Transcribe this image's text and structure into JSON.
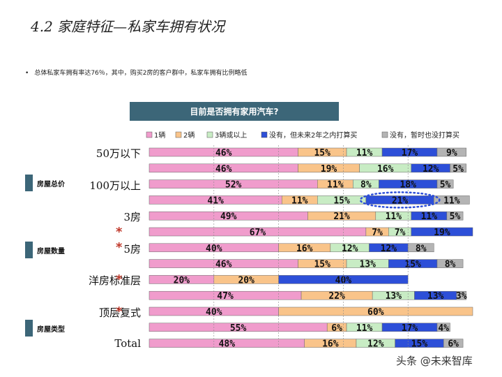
{
  "page": {
    "title": "4.2 家庭特征—私家车拥有状况",
    "bullet": "总体私家车拥有率达76％，其中，购买2房的客户群中，私家车拥有比例略低",
    "watermark": "头条 @未来智库"
  },
  "groups": [
    "房屋总价",
    "房屋数量",
    "房屋类型"
  ],
  "chart_data": {
    "type": "bar",
    "orientation": "horizontal-stacked-100",
    "title": "目前是否拥有家用汽车?",
    "legend": [
      "1辆",
      "2辆",
      "3辆或以上",
      "没有，但未来2年之内打算买",
      "没有，暂时也没打算买"
    ],
    "colors": [
      "#f09ccc",
      "#f9c48a",
      "#c8ecc4",
      "#2d4fd8",
      "#b4b4b4"
    ],
    "categories": [
      "50万以下",
      "",
      "100万以上",
      "",
      "3房",
      "",
      "5房",
      "",
      "洋房标准层",
      "",
      "顶层复式",
      "",
      "Total"
    ],
    "series": [
      {
        "name": "1辆",
        "values": [
          46,
          46,
          52,
          41,
          49,
          67,
          40,
          46,
          20,
          47,
          40,
          55,
          48
        ]
      },
      {
        "name": "2辆",
        "values": [
          15,
          19,
          11,
          11,
          21,
          7,
          16,
          15,
          20,
          22,
          60,
          6,
          16
        ]
      },
      {
        "name": "3辆或以上",
        "values": [
          11,
          16,
          8,
          15,
          11,
          7,
          12,
          13,
          0,
          13,
          0,
          11,
          12
        ]
      },
      {
        "name": "没有，但未来2年之内打算买",
        "values": [
          17,
          12,
          18,
          21,
          11,
          19,
          12,
          15,
          40,
          13,
          0,
          17,
          15
        ]
      },
      {
        "name": "没有，暂时也没打算买",
        "values": [
          9,
          5,
          5,
          11,
          5,
          0,
          8,
          8,
          0,
          3,
          0,
          4,
          6
        ]
      }
    ],
    "labels": [
      [
        "46%",
        "15%",
        "11%",
        "17%",
        "9%"
      ],
      [
        "46%",
        "19%",
        "16%",
        "12%",
        "5%"
      ],
      [
        "52%",
        "11%",
        "8%",
        "18%",
        "5%"
      ],
      [
        "41%",
        "11%",
        "15%",
        "21%",
        "11%"
      ],
      [
        "49%",
        "21%",
        "11%",
        "11%",
        "5%"
      ],
      [
        "67%",
        "7%",
        "7%",
        "19%",
        ""
      ],
      [
        "40%",
        "16%",
        "12%",
        "12%",
        "8%"
      ],
      [
        "46%",
        "15%",
        "13%",
        "15%",
        "8%"
      ],
      [
        "20%",
        "20%",
        "",
        "40%",
        ""
      ],
      [
        "47%",
        "22%",
        "13%",
        "13%",
        "3%"
      ],
      [
        "40%",
        "60%",
        "",
        "",
        ""
      ],
      [
        "55%",
        "6%",
        "11%",
        "17%",
        "4%"
      ],
      [
        "48%",
        "16%",
        "12%",
        "15%",
        "6%"
      ]
    ],
    "highlight": {
      "row": 3,
      "series": 3
    },
    "xlim": [
      0,
      100
    ]
  }
}
